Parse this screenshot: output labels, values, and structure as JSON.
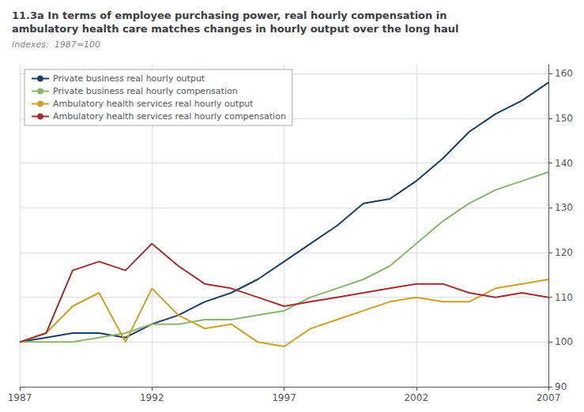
{
  "chart_data": {
    "type": "line",
    "title": "11.3a In terms of employee purchasing power, real hourly compensation in\nambulatory health care matches changes in hourly output over the long haul",
    "subtitle": "Indexes:  1987=100",
    "x": [
      1987,
      1988,
      1989,
      1990,
      1991,
      1992,
      1993,
      1994,
      1995,
      1996,
      1997,
      1998,
      1999,
      2000,
      2001,
      2002,
      2003,
      2004,
      2005,
      2006,
      2007
    ],
    "series": [
      {
        "name": "Private business real hourly output",
        "color": "#1c3f5e",
        "values": [
          100,
          101,
          102,
          102,
          101,
          104,
          106,
          109,
          111,
          114,
          118,
          122,
          126,
          131,
          132,
          136,
          141,
          147,
          151,
          154,
          158
        ]
      },
      {
        "name": "Private business real hourly compensation",
        "color": "#8ab56e",
        "values": [
          100,
          100,
          100,
          101,
          102,
          104,
          104,
          105,
          105,
          106,
          107,
          110,
          112,
          114,
          117,
          122,
          127,
          131,
          134,
          136,
          138
        ]
      },
      {
        "name": "Ambulatory health services real hourly output",
        "color": "#c9a227",
        "values": [
          100,
          102,
          108,
          111,
          100,
          112,
          106,
          103,
          104,
          100,
          99,
          103,
          105,
          107,
          109,
          110,
          109,
          109,
          112,
          113,
          114
        ]
      },
      {
        "name": "Ambulatory health services real hourly compensation",
        "color": "#a03030",
        "values": [
          100,
          102,
          116,
          118,
          116,
          122,
          117,
          113,
          112,
          110,
          108,
          109,
          110,
          111,
          112,
          113,
          113,
          111,
          110,
          111,
          110
        ]
      }
    ],
    "xlim": [
      1987,
      2007
    ],
    "xticks": [
      1987,
      1992,
      1997,
      2002,
      2007
    ],
    "ylim": [
      90,
      162
    ],
    "yticks": [
      90,
      100,
      110,
      120,
      130,
      140,
      150,
      160
    ],
    "grid": true,
    "legend": "upper left"
  }
}
